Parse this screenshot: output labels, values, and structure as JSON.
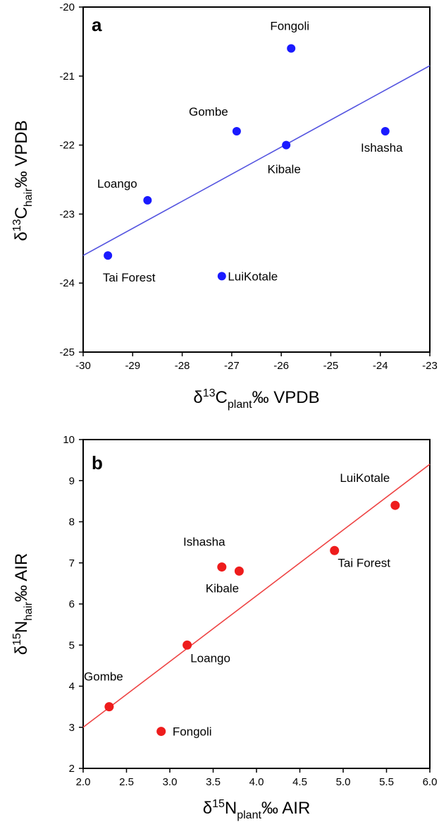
{
  "chart_data": [
    {
      "type": "scatter",
      "panel_label": "a",
      "xlabel": {
        "prefix": "δ",
        "sup": "13",
        "main": "C",
        "sub": "plant",
        "suffix": "‰ VPDB"
      },
      "ylabel": {
        "prefix": "δ",
        "sup": "13",
        "main": "C",
        "sub": "hair",
        "suffix": "‰ VPDB"
      },
      "xlim": [
        -30,
        -23
      ],
      "ylim": [
        -25,
        -20
      ],
      "xticks": [
        "-30",
        "-29",
        "-28",
        "-27",
        "-26",
        "-25",
        "-24",
        "-23"
      ],
      "yticks": [
        "-25",
        "-24",
        "-23",
        "-22",
        "-21",
        "-20"
      ],
      "marker_color": "#1a1aff",
      "line_color": "#5555e0",
      "points": [
        {
          "label": "Fongoli",
          "x": -25.8,
          "y": -20.6
        },
        {
          "label": "Gombe",
          "x": -26.9,
          "y": -21.8
        },
        {
          "label": "Ishasha",
          "x": -23.9,
          "y": -21.8
        },
        {
          "label": "Kibale",
          "x": -25.9,
          "y": -22.0
        },
        {
          "label": "Loango",
          "x": -28.7,
          "y": -22.8
        },
        {
          "label": "Tai Forest",
          "x": -29.5,
          "y": -23.6
        },
        {
          "label": "LuiKotale",
          "x": -27.2,
          "y": -23.9
        }
      ],
      "fit_line": {
        "x": [
          -30,
          -23
        ],
        "y": [
          -23.6,
          -20.85
        ]
      }
    },
    {
      "type": "scatter",
      "panel_label": "b",
      "xlabel": {
        "prefix": "δ",
        "sup": "15",
        "main": "N",
        "sub": "plant",
        "suffix": "‰ AIR"
      },
      "ylabel": {
        "prefix": "δ",
        "sup": "15",
        "main": "N",
        "sub": "hair",
        "suffix": "‰ AIR"
      },
      "xlim": [
        2.0,
        6.0
      ],
      "ylim": [
        2,
        10
      ],
      "xticks": [
        "2.0",
        "2.5",
        "3.0",
        "3.5",
        "4.0",
        "4.5",
        "5.0",
        "5.5",
        "6.0"
      ],
      "yticks": [
        "2",
        "3",
        "4",
        "5",
        "6",
        "7",
        "8",
        "9",
        "10"
      ],
      "marker_color": "#ee1c1c",
      "line_color": "#ee4444",
      "points": [
        {
          "label": "LuiKotale",
          "x": 5.6,
          "y": 8.4
        },
        {
          "label": "Tai Forest",
          "x": 4.9,
          "y": 7.3
        },
        {
          "label": "Ishasha",
          "x": 3.6,
          "y": 6.9
        },
        {
          "label": "Kibale",
          "x": 3.8,
          "y": 6.8
        },
        {
          "label": "Loango",
          "x": 3.2,
          "y": 5.0
        },
        {
          "label": "Gombe",
          "x": 2.3,
          "y": 3.5
        },
        {
          "label": "Fongoli",
          "x": 2.9,
          "y": 2.9
        }
      ],
      "fit_line": {
        "x": [
          2.0,
          6.0
        ],
        "y": [
          3.0,
          9.4
        ]
      }
    }
  ]
}
